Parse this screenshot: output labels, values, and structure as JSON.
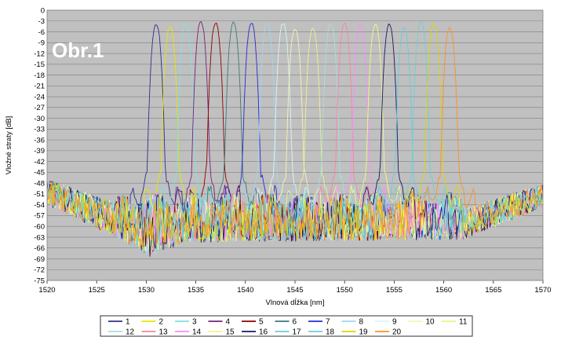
{
  "chart_data": {
    "type": "line",
    "title": "",
    "badge": "Obr.1",
    "xlabel": "Vlnová dĺžka [nm]",
    "ylabel": "Vložné straty [dB]",
    "xlim": [
      1520,
      1570
    ],
    "ylim": [
      -75,
      0
    ],
    "xticks": [
      1520,
      1525,
      1530,
      1535,
      1540,
      1545,
      1550,
      1555,
      1560,
      1565,
      1570
    ],
    "yticks": [
      0,
      -3,
      -6,
      -9,
      -12,
      -15,
      -18,
      -21,
      -24,
      -27,
      -30,
      -33,
      -36,
      -39,
      -42,
      -45,
      -48,
      -51,
      -54,
      -57,
      -60,
      -63,
      -66,
      -69,
      -72,
      -75
    ],
    "grid": true,
    "legend_position": "bottom",
    "background_color": "#c0c0c0",
    "series": [
      {
        "name": "1",
        "center": 1531.0,
        "peak": -4,
        "color": "#2f2f8f"
      },
      {
        "name": "2",
        "center": 1532.4,
        "peak": -4.5,
        "color": "#e6e600"
      },
      {
        "name": "3",
        "center": 1534.0,
        "peak": -3,
        "color": "#7fe0e0"
      },
      {
        "name": "4",
        "center": 1535.5,
        "peak": -3.2,
        "color": "#7a1f7a"
      },
      {
        "name": "5",
        "center": 1537.0,
        "peak": -3.6,
        "color": "#8b0000"
      },
      {
        "name": "6",
        "center": 1538.8,
        "peak": -3.5,
        "color": "#3a7a7a"
      },
      {
        "name": "7",
        "center": 1540.6,
        "peak": -3.6,
        "color": "#2a2ad0"
      },
      {
        "name": "8",
        "center": 1542.2,
        "peak": -3.4,
        "color": "#9ad7f0"
      },
      {
        "name": "9",
        "center": 1543.8,
        "peak": -3.6,
        "color": "#d6f6f6"
      },
      {
        "name": "10",
        "center": 1545.0,
        "peak": -5.2,
        "color": "#f5f5b0"
      },
      {
        "name": "11",
        "center": 1546.8,
        "peak": -5.0,
        "color": "#f0f088"
      },
      {
        "name": "12",
        "center": 1548.6,
        "peak": -3.8,
        "color": "#a0e0e0"
      },
      {
        "name": "13",
        "center": 1550.0,
        "peak": -3.7,
        "color": "#ff80a0"
      },
      {
        "name": "14",
        "center": 1551.6,
        "peak": -3.8,
        "color": "#ff88ff"
      },
      {
        "name": "15",
        "center": 1553.1,
        "peak": -4.0,
        "color": "#f6f680"
      },
      {
        "name": "16",
        "center": 1554.5,
        "peak": -4.0,
        "color": "#1a1a66"
      },
      {
        "name": "17",
        "center": 1556.0,
        "peak": -4.8,
        "color": "#66ccdd"
      },
      {
        "name": "18",
        "center": 1557.7,
        "peak": -3.3,
        "color": "#6fd0d0"
      },
      {
        "name": "19",
        "center": 1559.0,
        "peak": -3.6,
        "color": "#d8d800"
      },
      {
        "name": "20",
        "center": 1560.6,
        "peak": -4.8,
        "color": "#ff9020"
      }
    ]
  }
}
